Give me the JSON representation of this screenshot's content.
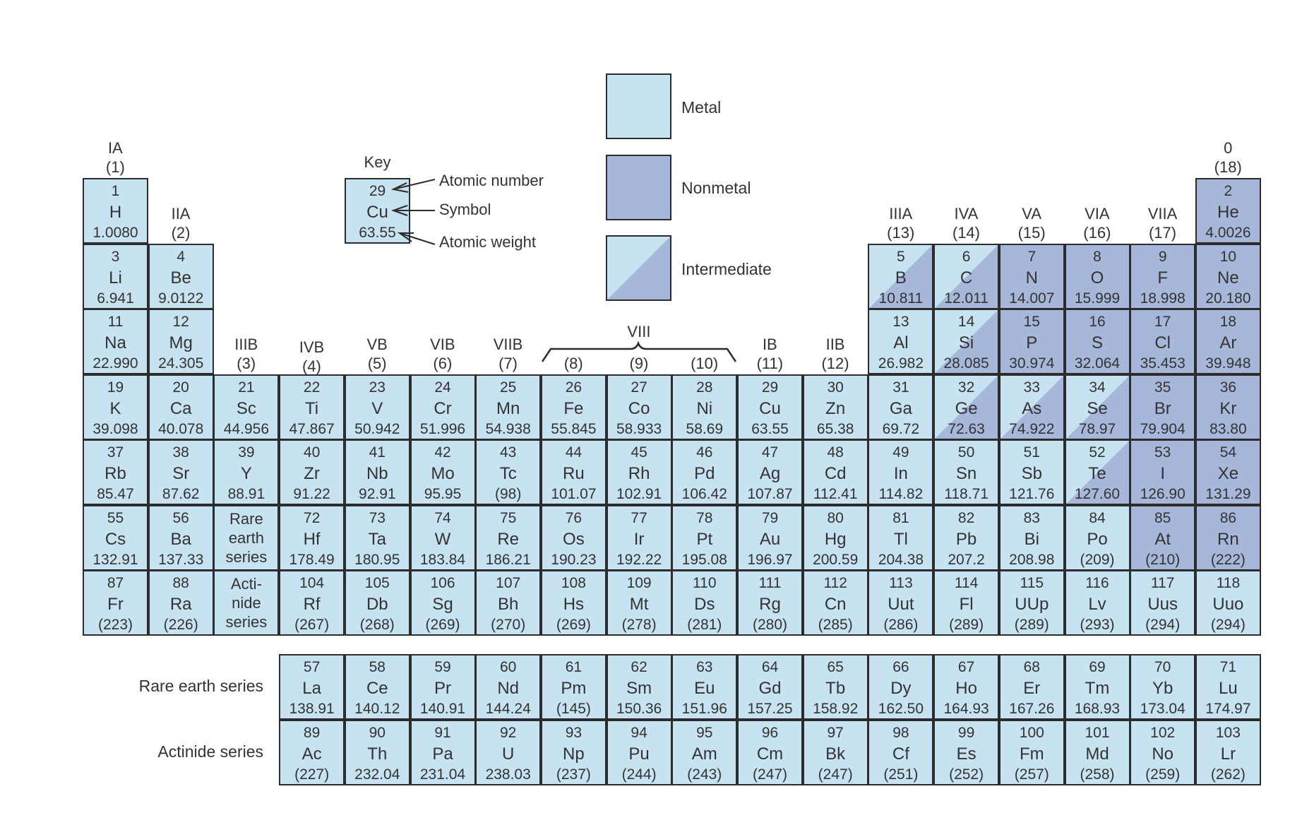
{
  "groups": [
    {
      "col": 1,
      "label": "IA\n(1)",
      "row": 0
    },
    {
      "col": 2,
      "label": "IIA\n(2)",
      "row": 1
    },
    {
      "col": 3,
      "label": "IIIB\n(3)",
      "row": 3
    },
    {
      "col": 4,
      "label": "IVB\n(4)",
      "row": 3
    },
    {
      "col": 5,
      "label": "VB\n(5)",
      "row": 3
    },
    {
      "col": 6,
      "label": "VIB\n(6)",
      "row": 3
    },
    {
      "col": 7,
      "label": "VIIB\n(7)",
      "row": 3
    },
    {
      "col": 8,
      "label": "(8)",
      "row": 3
    },
    {
      "col": 9,
      "label": "(9)",
      "row": 3
    },
    {
      "col": 10,
      "label": "(10)",
      "row": 3
    },
    {
      "col": 11,
      "label": "IB\n(11)",
      "row": 3
    },
    {
      "col": 12,
      "label": "IIB\n(12)",
      "row": 3
    },
    {
      "col": 13,
      "label": "IIIA\n(13)",
      "row": 1
    },
    {
      "col": 14,
      "label": "IVA\n(14)",
      "row": 1
    },
    {
      "col": 15,
      "label": "VA\n(15)",
      "row": 1
    },
    {
      "col": 16,
      "label": "VIA\n(16)",
      "row": 1
    },
    {
      "col": 17,
      "label": "VIIA\n(17)",
      "row": 1
    },
    {
      "col": 18,
      "label": "0\n(18)",
      "row": 0
    }
  ],
  "group_viii_label": "VIII",
  "key": {
    "title": "Key",
    "example": {
      "n": "29",
      "s": "Cu",
      "w": "63.55"
    },
    "atomic_number_label": "Atomic number",
    "symbol_label": "Symbol",
    "atomic_weight_label": "Atomic weight"
  },
  "legend": [
    {
      "type": "metal",
      "label": "Metal"
    },
    {
      "type": "nonmetal",
      "label": "Nonmetal"
    },
    {
      "type": "intermediate",
      "label": "Intermediate"
    }
  ],
  "colors": {
    "metal": "#c7e2f0",
    "nonmetal": "#a6b7d9",
    "border": "#2c2c2c"
  },
  "series_cells": [
    {
      "row": 6,
      "col": 3,
      "text": "Rare\nearth\nseries"
    },
    {
      "row": 7,
      "col": 3,
      "text": "Acti-\nnide\nseries"
    }
  ],
  "series_labels": {
    "rare_earth": "Rare earth series",
    "actinide": "Actinide series"
  },
  "elements": [
    {
      "n": "1",
      "s": "H",
      "w": "1.0080",
      "r": 1,
      "c": 1,
      "t": "metal"
    },
    {
      "n": "2",
      "s": "He",
      "w": "4.0026",
      "r": 1,
      "c": 18,
      "t": "nonmetal"
    },
    {
      "n": "3",
      "s": "Li",
      "w": "6.941",
      "r": 2,
      "c": 1,
      "t": "metal"
    },
    {
      "n": "4",
      "s": "Be",
      "w": "9.0122",
      "r": 2,
      "c": 2,
      "t": "metal"
    },
    {
      "n": "5",
      "s": "B",
      "w": "10.811",
      "r": 2,
      "c": 13,
      "t": "intermediate"
    },
    {
      "n": "6",
      "s": "C",
      "w": "12.011",
      "r": 2,
      "c": 14,
      "t": "intermediate"
    },
    {
      "n": "7",
      "s": "N",
      "w": "14.007",
      "r": 2,
      "c": 15,
      "t": "nonmetal"
    },
    {
      "n": "8",
      "s": "O",
      "w": "15.999",
      "r": 2,
      "c": 16,
      "t": "nonmetal"
    },
    {
      "n": "9",
      "s": "F",
      "w": "18.998",
      "r": 2,
      "c": 17,
      "t": "nonmetal"
    },
    {
      "n": "10",
      "s": "Ne",
      "w": "20.180",
      "r": 2,
      "c": 18,
      "t": "nonmetal"
    },
    {
      "n": "11",
      "s": "Na",
      "w": "22.990",
      "r": 3,
      "c": 1,
      "t": "metal"
    },
    {
      "n": "12",
      "s": "Mg",
      "w": "24.305",
      "r": 3,
      "c": 2,
      "t": "metal"
    },
    {
      "n": "13",
      "s": "Al",
      "w": "26.982",
      "r": 3,
      "c": 13,
      "t": "metal"
    },
    {
      "n": "14",
      "s": "Si",
      "w": "28.085",
      "r": 3,
      "c": 14,
      "t": "intermediate"
    },
    {
      "n": "15",
      "s": "P",
      "w": "30.974",
      "r": 3,
      "c": 15,
      "t": "nonmetal"
    },
    {
      "n": "16",
      "s": "S",
      "w": "32.064",
      "r": 3,
      "c": 16,
      "t": "nonmetal"
    },
    {
      "n": "17",
      "s": "Cl",
      "w": "35.453",
      "r": 3,
      "c": 17,
      "t": "nonmetal"
    },
    {
      "n": "18",
      "s": "Ar",
      "w": "39.948",
      "r": 3,
      "c": 18,
      "t": "nonmetal"
    },
    {
      "n": "19",
      "s": "K",
      "w": "39.098",
      "r": 4,
      "c": 1,
      "t": "metal"
    },
    {
      "n": "20",
      "s": "Ca",
      "w": "40.078",
      "r": 4,
      "c": 2,
      "t": "metal"
    },
    {
      "n": "21",
      "s": "Sc",
      "w": "44.956",
      "r": 4,
      "c": 3,
      "t": "metal"
    },
    {
      "n": "22",
      "s": "Ti",
      "w": "47.867",
      "r": 4,
      "c": 4,
      "t": "metal"
    },
    {
      "n": "23",
      "s": "V",
      "w": "50.942",
      "r": 4,
      "c": 5,
      "t": "metal"
    },
    {
      "n": "24",
      "s": "Cr",
      "w": "51.996",
      "r": 4,
      "c": 6,
      "t": "metal"
    },
    {
      "n": "25",
      "s": "Mn",
      "w": "54.938",
      "r": 4,
      "c": 7,
      "t": "metal"
    },
    {
      "n": "26",
      "s": "Fe",
      "w": "55.845",
      "r": 4,
      "c": 8,
      "t": "metal"
    },
    {
      "n": "27",
      "s": "Co",
      "w": "58.933",
      "r": 4,
      "c": 9,
      "t": "metal"
    },
    {
      "n": "28",
      "s": "Ni",
      "w": "58.69",
      "r": 4,
      "c": 10,
      "t": "metal"
    },
    {
      "n": "29",
      "s": "Cu",
      "w": "63.55",
      "r": 4,
      "c": 11,
      "t": "metal"
    },
    {
      "n": "30",
      "s": "Zn",
      "w": "65.38",
      "r": 4,
      "c": 12,
      "t": "metal"
    },
    {
      "n": "31",
      "s": "Ga",
      "w": "69.72",
      "r": 4,
      "c": 13,
      "t": "metal"
    },
    {
      "n": "32",
      "s": "Ge",
      "w": "72.63",
      "r": 4,
      "c": 14,
      "t": "intermediate"
    },
    {
      "n": "33",
      "s": "As",
      "w": "74.922",
      "r": 4,
      "c": 15,
      "t": "intermediate"
    },
    {
      "n": "34",
      "s": "Se",
      "w": "78.97",
      "r": 4,
      "c": 16,
      "t": "intermediate"
    },
    {
      "n": "35",
      "s": "Br",
      "w": "79.904",
      "r": 4,
      "c": 17,
      "t": "nonmetal"
    },
    {
      "n": "36",
      "s": "Kr",
      "w": "83.80",
      "r": 4,
      "c": 18,
      "t": "nonmetal"
    },
    {
      "n": "37",
      "s": "Rb",
      "w": "85.47",
      "r": 5,
      "c": 1,
      "t": "metal"
    },
    {
      "n": "38",
      "s": "Sr",
      "w": "87.62",
      "r": 5,
      "c": 2,
      "t": "metal"
    },
    {
      "n": "39",
      "s": "Y",
      "w": "88.91",
      "r": 5,
      "c": 3,
      "t": "metal"
    },
    {
      "n": "40",
      "s": "Zr",
      "w": "91.22",
      "r": 5,
      "c": 4,
      "t": "metal"
    },
    {
      "n": "41",
      "s": "Nb",
      "w": "92.91",
      "r": 5,
      "c": 5,
      "t": "metal"
    },
    {
      "n": "42",
      "s": "Mo",
      "w": "95.95",
      "r": 5,
      "c": 6,
      "t": "metal"
    },
    {
      "n": "43",
      "s": "Tc",
      "w": "(98)",
      "r": 5,
      "c": 7,
      "t": "metal"
    },
    {
      "n": "44",
      "s": "Ru",
      "w": "101.07",
      "r": 5,
      "c": 8,
      "t": "metal"
    },
    {
      "n": "45",
      "s": "Rh",
      "w": "102.91",
      "r": 5,
      "c": 9,
      "t": "metal"
    },
    {
      "n": "46",
      "s": "Pd",
      "w": "106.42",
      "r": 5,
      "c": 10,
      "t": "metal"
    },
    {
      "n": "47",
      "s": "Ag",
      "w": "107.87",
      "r": 5,
      "c": 11,
      "t": "metal"
    },
    {
      "n": "48",
      "s": "Cd",
      "w": "112.41",
      "r": 5,
      "c": 12,
      "t": "metal"
    },
    {
      "n": "49",
      "s": "In",
      "w": "114.82",
      "r": 5,
      "c": 13,
      "t": "metal"
    },
    {
      "n": "50",
      "s": "Sn",
      "w": "118.71",
      "r": 5,
      "c": 14,
      "t": "metal"
    },
    {
      "n": "51",
      "s": "Sb",
      "w": "121.76",
      "r": 5,
      "c": 15,
      "t": "metal"
    },
    {
      "n": "52",
      "s": "Te",
      "w": "127.60",
      "r": 5,
      "c": 16,
      "t": "intermediate"
    },
    {
      "n": "53",
      "s": "I",
      "w": "126.90",
      "r": 5,
      "c": 17,
      "t": "nonmetal"
    },
    {
      "n": "54",
      "s": "Xe",
      "w": "131.29",
      "r": 5,
      "c": 18,
      "t": "nonmetal"
    },
    {
      "n": "55",
      "s": "Cs",
      "w": "132.91",
      "r": 6,
      "c": 1,
      "t": "metal"
    },
    {
      "n": "56",
      "s": "Ba",
      "w": "137.33",
      "r": 6,
      "c": 2,
      "t": "metal"
    },
    {
      "n": "72",
      "s": "Hf",
      "w": "178.49",
      "r": 6,
      "c": 4,
      "t": "metal"
    },
    {
      "n": "73",
      "s": "Ta",
      "w": "180.95",
      "r": 6,
      "c": 5,
      "t": "metal"
    },
    {
      "n": "74",
      "s": "W",
      "w": "183.84",
      "r": 6,
      "c": 6,
      "t": "metal"
    },
    {
      "n": "75",
      "s": "Re",
      "w": "186.21",
      "r": 6,
      "c": 7,
      "t": "metal"
    },
    {
      "n": "76",
      "s": "Os",
      "w": "190.23",
      "r": 6,
      "c": 8,
      "t": "metal"
    },
    {
      "n": "77",
      "s": "Ir",
      "w": "192.22",
      "r": 6,
      "c": 9,
      "t": "metal"
    },
    {
      "n": "78",
      "s": "Pt",
      "w": "195.08",
      "r": 6,
      "c": 10,
      "t": "metal"
    },
    {
      "n": "79",
      "s": "Au",
      "w": "196.97",
      "r": 6,
      "c": 11,
      "t": "metal"
    },
    {
      "n": "80",
      "s": "Hg",
      "w": "200.59",
      "r": 6,
      "c": 12,
      "t": "metal"
    },
    {
      "n": "81",
      "s": "Tl",
      "w": "204.38",
      "r": 6,
      "c": 13,
      "t": "metal"
    },
    {
      "n": "82",
      "s": "Pb",
      "w": "207.2",
      "r": 6,
      "c": 14,
      "t": "metal"
    },
    {
      "n": "83",
      "s": "Bi",
      "w": "208.98",
      "r": 6,
      "c": 15,
      "t": "metal"
    },
    {
      "n": "84",
      "s": "Po",
      "w": "(209)",
      "r": 6,
      "c": 16,
      "t": "metal"
    },
    {
      "n": "85",
      "s": "At",
      "w": "(210)",
      "r": 6,
      "c": 17,
      "t": "nonmetal"
    },
    {
      "n": "86",
      "s": "Rn",
      "w": "(222)",
      "r": 6,
      "c": 18,
      "t": "nonmetal"
    },
    {
      "n": "87",
      "s": "Fr",
      "w": "(223)",
      "r": 7,
      "c": 1,
      "t": "metal"
    },
    {
      "n": "88",
      "s": "Ra",
      "w": "(226)",
      "r": 7,
      "c": 2,
      "t": "metal"
    },
    {
      "n": "104",
      "s": "Rf",
      "w": "(267)",
      "r": 7,
      "c": 4,
      "t": "metal"
    },
    {
      "n": "105",
      "s": "Db",
      "w": "(268)",
      "r": 7,
      "c": 5,
      "t": "metal"
    },
    {
      "n": "106",
      "s": "Sg",
      "w": "(269)",
      "r": 7,
      "c": 6,
      "t": "metal"
    },
    {
      "n": "107",
      "s": "Bh",
      "w": "(270)",
      "r": 7,
      "c": 7,
      "t": "metal"
    },
    {
      "n": "108",
      "s": "Hs",
      "w": "(269)",
      "r": 7,
      "c": 8,
      "t": "metal"
    },
    {
      "n": "109",
      "s": "Mt",
      "w": "(278)",
      "r": 7,
      "c": 9,
      "t": "metal"
    },
    {
      "n": "110",
      "s": "Ds",
      "w": "(281)",
      "r": 7,
      "c": 10,
      "t": "metal"
    },
    {
      "n": "111",
      "s": "Rg",
      "w": "(280)",
      "r": 7,
      "c": 11,
      "t": "metal"
    },
    {
      "n": "112",
      "s": "Cn",
      "w": "(285)",
      "r": 7,
      "c": 12,
      "t": "metal"
    },
    {
      "n": "113",
      "s": "Uut",
      "w": "(286)",
      "r": 7,
      "c": 13,
      "t": "metal"
    },
    {
      "n": "114",
      "s": "Fl",
      "w": "(289)",
      "r": 7,
      "c": 14,
      "t": "metal"
    },
    {
      "n": "115",
      "s": "UUp",
      "w": "(289)",
      "r": 7,
      "c": 15,
      "t": "metal"
    },
    {
      "n": "116",
      "s": "Lv",
      "w": "(293)",
      "r": 7,
      "c": 16,
      "t": "metal"
    },
    {
      "n": "117",
      "s": "Uus",
      "w": "(294)",
      "r": 7,
      "c": 17,
      "t": "metal"
    },
    {
      "n": "118",
      "s": "Uuo",
      "w": "(294)",
      "r": 7,
      "c": 18,
      "t": "metal"
    },
    {
      "n": "57",
      "s": "La",
      "w": "138.91",
      "r": 8,
      "c": 4,
      "t": "metal"
    },
    {
      "n": "58",
      "s": "Ce",
      "w": "140.12",
      "r": 8,
      "c": 5,
      "t": "metal"
    },
    {
      "n": "59",
      "s": "Pr",
      "w": "140.91",
      "r": 8,
      "c": 6,
      "t": "metal"
    },
    {
      "n": "60",
      "s": "Nd",
      "w": "144.24",
      "r": 8,
      "c": 7,
      "t": "metal"
    },
    {
      "n": "61",
      "s": "Pm",
      "w": "(145)",
      "r": 8,
      "c": 8,
      "t": "metal"
    },
    {
      "n": "62",
      "s": "Sm",
      "w": "150.36",
      "r": 8,
      "c": 9,
      "t": "metal"
    },
    {
      "n": "63",
      "s": "Eu",
      "w": "151.96",
      "r": 8,
      "c": 10,
      "t": "metal"
    },
    {
      "n": "64",
      "s": "Gd",
      "w": "157.25",
      "r": 8,
      "c": 11,
      "t": "metal"
    },
    {
      "n": "65",
      "s": "Tb",
      "w": "158.92",
      "r": 8,
      "c": 12,
      "t": "metal"
    },
    {
      "n": "66",
      "s": "Dy",
      "w": "162.50",
      "r": 8,
      "c": 13,
      "t": "metal"
    },
    {
      "n": "67",
      "s": "Ho",
      "w": "164.93",
      "r": 8,
      "c": 14,
      "t": "metal"
    },
    {
      "n": "68",
      "s": "Er",
      "w": "167.26",
      "r": 8,
      "c": 15,
      "t": "metal"
    },
    {
      "n": "69",
      "s": "Tm",
      "w": "168.93",
      "r": 8,
      "c": 16,
      "t": "metal"
    },
    {
      "n": "70",
      "s": "Yb",
      "w": "173.04",
      "r": 8,
      "c": 17,
      "t": "metal"
    },
    {
      "n": "71",
      "s": "Lu",
      "w": "174.97",
      "r": 8,
      "c": 18,
      "t": "metal"
    },
    {
      "n": "89",
      "s": "Ac",
      "w": "(227)",
      "r": 9,
      "c": 4,
      "t": "metal"
    },
    {
      "n": "90",
      "s": "Th",
      "w": "232.04",
      "r": 9,
      "c": 5,
      "t": "metal"
    },
    {
      "n": "91",
      "s": "Pa",
      "w": "231.04",
      "r": 9,
      "c": 6,
      "t": "metal"
    },
    {
      "n": "92",
      "s": "U",
      "w": "238.03",
      "r": 9,
      "c": 7,
      "t": "metal"
    },
    {
      "n": "93",
      "s": "Np",
      "w": "(237)",
      "r": 9,
      "c": 8,
      "t": "metal"
    },
    {
      "n": "94",
      "s": "Pu",
      "w": "(244)",
      "r": 9,
      "c": 9,
      "t": "metal"
    },
    {
      "n": "95",
      "s": "Am",
      "w": "(243)",
      "r": 9,
      "c": 10,
      "t": "metal"
    },
    {
      "n": "96",
      "s": "Cm",
      "w": "(247)",
      "r": 9,
      "c": 11,
      "t": "metal"
    },
    {
      "n": "97",
      "s": "Bk",
      "w": "(247)",
      "r": 9,
      "c": 12,
      "t": "metal"
    },
    {
      "n": "98",
      "s": "Cf",
      "w": "(251)",
      "r": 9,
      "c": 13,
      "t": "metal"
    },
    {
      "n": "99",
      "s": "Es",
      "w": "(252)",
      "r": 9,
      "c": 14,
      "t": "metal"
    },
    {
      "n": "100",
      "s": "Fm",
      "w": "(257)",
      "r": 9,
      "c": 15,
      "t": "metal"
    },
    {
      "n": "101",
      "s": "Md",
      "w": "(258)",
      "r": 9,
      "c": 16,
      "t": "metal"
    },
    {
      "n": "102",
      "s": "No",
      "w": "(259)",
      "r": 9,
      "c": 17,
      "t": "metal"
    },
    {
      "n": "103",
      "s": "Lr",
      "w": "(262)",
      "r": 9,
      "c": 18,
      "t": "metal"
    }
  ]
}
